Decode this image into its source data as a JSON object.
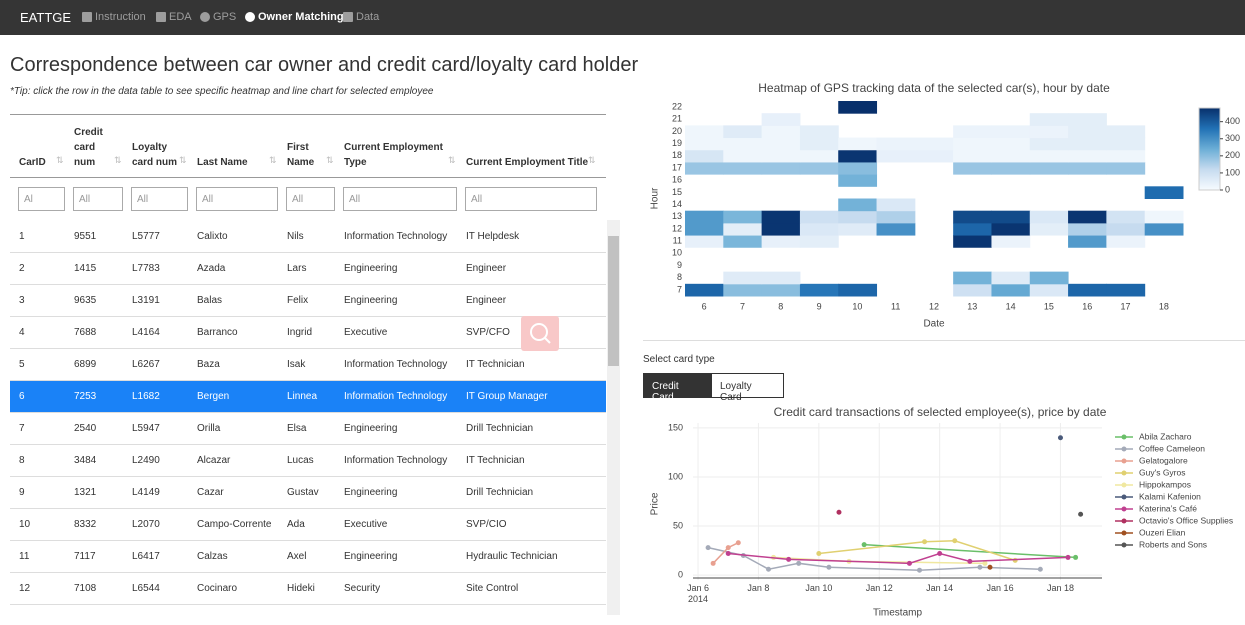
{
  "nav": {
    "brand": "EATTGE",
    "items": [
      "Instruction",
      "EDA",
      "GPS",
      "Owner Matching",
      "Data"
    ],
    "active": 3
  },
  "header": {
    "title": "Correspondence between car owner and credit card/loyalty card holder",
    "tip": "*Tip: click the row in the data table to see specific heatmap and line chart for selected employee"
  },
  "table": {
    "columns": [
      "CarID",
      "Credit card num",
      "Loyalty card num",
      "Last Name",
      "First Name",
      "Current Employment Type",
      "Current Employment Title"
    ],
    "filters": [
      "Al",
      "All",
      "All",
      "All",
      "All",
      "All",
      "All"
    ],
    "selected": 5,
    "rows": [
      [
        "1",
        "9551",
        "L5777",
        "Calixto",
        "Nils",
        "Information Technology",
        "IT Helpdesk"
      ],
      [
        "2",
        "1415",
        "L7783",
        "Azada",
        "Lars",
        "Engineering",
        "Engineer"
      ],
      [
        "3",
        "9635",
        "L3191",
        "Balas",
        "Felix",
        "Engineering",
        "Engineer"
      ],
      [
        "4",
        "7688",
        "L4164",
        "Barranco",
        "Ingrid",
        "Executive",
        "SVP/CFO"
      ],
      [
        "5",
        "6899",
        "L6267",
        "Baza",
        "Isak",
        "Information Technology",
        "IT Technician"
      ],
      [
        "6",
        "7253",
        "L1682",
        "Bergen",
        "Linnea",
        "Information Technology",
        "IT Group Manager"
      ],
      [
        "7",
        "2540",
        "L5947",
        "Orilla",
        "Elsa",
        "Engineering",
        "Drill Technician"
      ],
      [
        "8",
        "3484",
        "L2490",
        "Alcazar",
        "Lucas",
        "Information Technology",
        "IT Technician"
      ],
      [
        "9",
        "1321",
        "L4149",
        "Cazar",
        "Gustav",
        "Engineering",
        "Drill Technician"
      ],
      [
        "10",
        "8332",
        "L2070",
        "Campo-Corrente",
        "Ada",
        "Executive",
        "SVP/CIO"
      ],
      [
        "11",
        "7117",
        "L6417",
        "Calzas",
        "Axel",
        "Engineering",
        "Hydraulic Technician"
      ],
      [
        "12",
        "7108",
        "L6544",
        "Cocinaro",
        "Hideki",
        "Security",
        "Site Control"
      ]
    ]
  },
  "card_selector": {
    "label": "Select card type",
    "options": [
      "Credit Card",
      "Loyalty Card"
    ],
    "active": 0
  },
  "chart_data": [
    {
      "type": "heatmap",
      "title": "Heatmap of GPS tracking data of the selected car(s), hour by date",
      "x_label": "Date",
      "y_label": "Hour",
      "x": [
        6,
        7,
        8,
        9,
        10,
        11,
        12,
        13,
        14,
        15,
        16,
        17,
        18
      ],
      "y": [
        7,
        8,
        9,
        10,
        11,
        12,
        13,
        14,
        15,
        16,
        17,
        18,
        19,
        20,
        21,
        22
      ],
      "z": [
        [
          380,
          200,
          200,
          350,
          380,
          null,
          null,
          100,
          250,
          70,
          380,
          380,
          null
        ],
        [
          null,
          60,
          60,
          null,
          null,
          null,
          null,
          230,
          60,
          230,
          null,
          null,
          null
        ],
        [
          null,
          null,
          null,
          null,
          null,
          null,
          null,
          null,
          null,
          null,
          null,
          null,
          null
        ],
        [
          null,
          null,
          null,
          null,
          null,
          null,
          null,
          null,
          null,
          null,
          null,
          null,
          null
        ],
        [
          40,
          220,
          40,
          50,
          null,
          null,
          null,
          470,
          30,
          null,
          280,
          30,
          null
        ],
        [
          280,
          50,
          470,
          70,
          60,
          300,
          null,
          380,
          470,
          50,
          150,
          120,
          300
        ],
        [
          280,
          220,
          470,
          100,
          120,
          150,
          null,
          430,
          430,
          70,
          470,
          90,
          20
        ],
        [
          null,
          null,
          null,
          null,
          230,
          70,
          null,
          null,
          null,
          null,
          null,
          null,
          null
        ],
        [
          null,
          null,
          null,
          null,
          null,
          null,
          null,
          null,
          null,
          null,
          null,
          null,
          370
        ],
        [
          null,
          null,
          null,
          null,
          230,
          null,
          null,
          null,
          null,
          null,
          null,
          null,
          null
        ],
        [
          180,
          180,
          180,
          180,
          200,
          null,
          null,
          180,
          180,
          180,
          180,
          180,
          null
        ],
        [
          80,
          20,
          20,
          20,
          470,
          40,
          40,
          20,
          20,
          20,
          20,
          20,
          null
        ],
        [
          20,
          20,
          20,
          50,
          20,
          30,
          30,
          20,
          20,
          50,
          50,
          50,
          null
        ],
        [
          20,
          60,
          20,
          50,
          null,
          null,
          null,
          30,
          30,
          30,
          50,
          50,
          null
        ],
        [
          null,
          null,
          40,
          null,
          null,
          null,
          null,
          null,
          null,
          50,
          50,
          null,
          null
        ],
        [
          null,
          null,
          null,
          null,
          480,
          null,
          null,
          null,
          null,
          null,
          null,
          null,
          null
        ]
      ],
      "zlim": [
        0,
        480
      ],
      "colorbar_ticks": [
        0,
        100,
        200,
        300,
        400
      ]
    },
    {
      "type": "line",
      "title": "Credit card transactions of selected employee(s), price by date",
      "x_label": "Timestamp",
      "y_label": "Price",
      "xlim": [
        "2014-01-05T20:00",
        "2014-01-19T09:00"
      ],
      "xticks": [
        {
          "value": "2014-01-06T00:00",
          "label": "Jan 6\n2014"
        },
        {
          "value": "2014-01-08T00:00",
          "label": "Jan 8"
        },
        {
          "value": "2014-01-10T00:00",
          "label": "Jan 10"
        },
        {
          "value": "2014-01-12T00:00",
          "label": "Jan 12"
        },
        {
          "value": "2014-01-14T00:00",
          "label": "Jan 14"
        },
        {
          "value": "2014-01-16T00:00",
          "label": "Jan 16"
        },
        {
          "value": "2014-01-18T00:00",
          "label": "Jan 18"
        }
      ],
      "ylim": [
        -5,
        155
      ],
      "yticks": [
        0,
        50,
        100,
        150
      ],
      "grid": true,
      "series": [
        {
          "name": "Abila Zacharo",
          "color": "#6abf69",
          "x": [
            "2014-01-11T12:00",
            "2014-01-18T12:00"
          ],
          "values": [
            31,
            18
          ]
        },
        {
          "name": "Coffee Cameleon",
          "color": "#a4aab8",
          "x": [
            "2014-01-06T08:00",
            "2014-01-07T12:00",
            "2014-01-08T08:00",
            "2014-01-09T08:00",
            "2014-01-10T08:00",
            "2014-01-13T08:00",
            "2014-01-15T08:00",
            "2014-01-17T08:00"
          ],
          "values": [
            28,
            20,
            6,
            12,
            8,
            5,
            8,
            6
          ]
        },
        {
          "name": "Gelatogalore",
          "color": "#e8a090",
          "x": [
            "2014-01-06T12:00",
            "2014-01-07T00:00",
            "2014-01-07T08:00"
          ],
          "values": [
            12,
            28,
            33
          ]
        },
        {
          "name": "Guy's Gyros",
          "color": "#e0d070",
          "x": [
            "2014-01-10T00:00",
            "2014-01-13T12:00",
            "2014-01-14T12:00",
            "2014-01-16T12:00"
          ],
          "values": [
            22,
            34,
            35,
            15
          ]
        },
        {
          "name": "Hippokampos",
          "color": "#f0e8a0",
          "x": [
            "2014-01-08T12:00",
            "2014-01-11T00:00",
            "2014-01-15T12:00"
          ],
          "values": [
            18,
            14,
            12
          ]
        },
        {
          "name": "Kalami Kafenion",
          "color": "#4a5a7a",
          "x": [
            "2014-01-18T00:00"
          ],
          "values": [
            140
          ]
        },
        {
          "name": "Katerina’s Café",
          "color": "#c04090",
          "x": [
            "2014-01-07T00:00",
            "2014-01-09T00:00",
            "2014-01-13T00:00",
            "2014-01-14T00:00",
            "2014-01-15T00:00",
            "2014-01-18T06:00"
          ],
          "values": [
            22,
            16,
            12,
            22,
            14,
            18
          ]
        },
        {
          "name": "Octavio's Office Supplies",
          "color": "#b03060",
          "x": [
            "2014-01-10T16:00"
          ],
          "values": [
            64
          ]
        },
        {
          "name": "Ouzeri Elian",
          "color": "#a05020",
          "x": [
            "2014-01-15T16:00"
          ],
          "values": [
            8
          ]
        },
        {
          "name": "Roberts and Sons",
          "color": "#555555",
          "x": [
            "2014-01-18T16:00"
          ],
          "values": [
            62
          ]
        }
      ]
    }
  ]
}
